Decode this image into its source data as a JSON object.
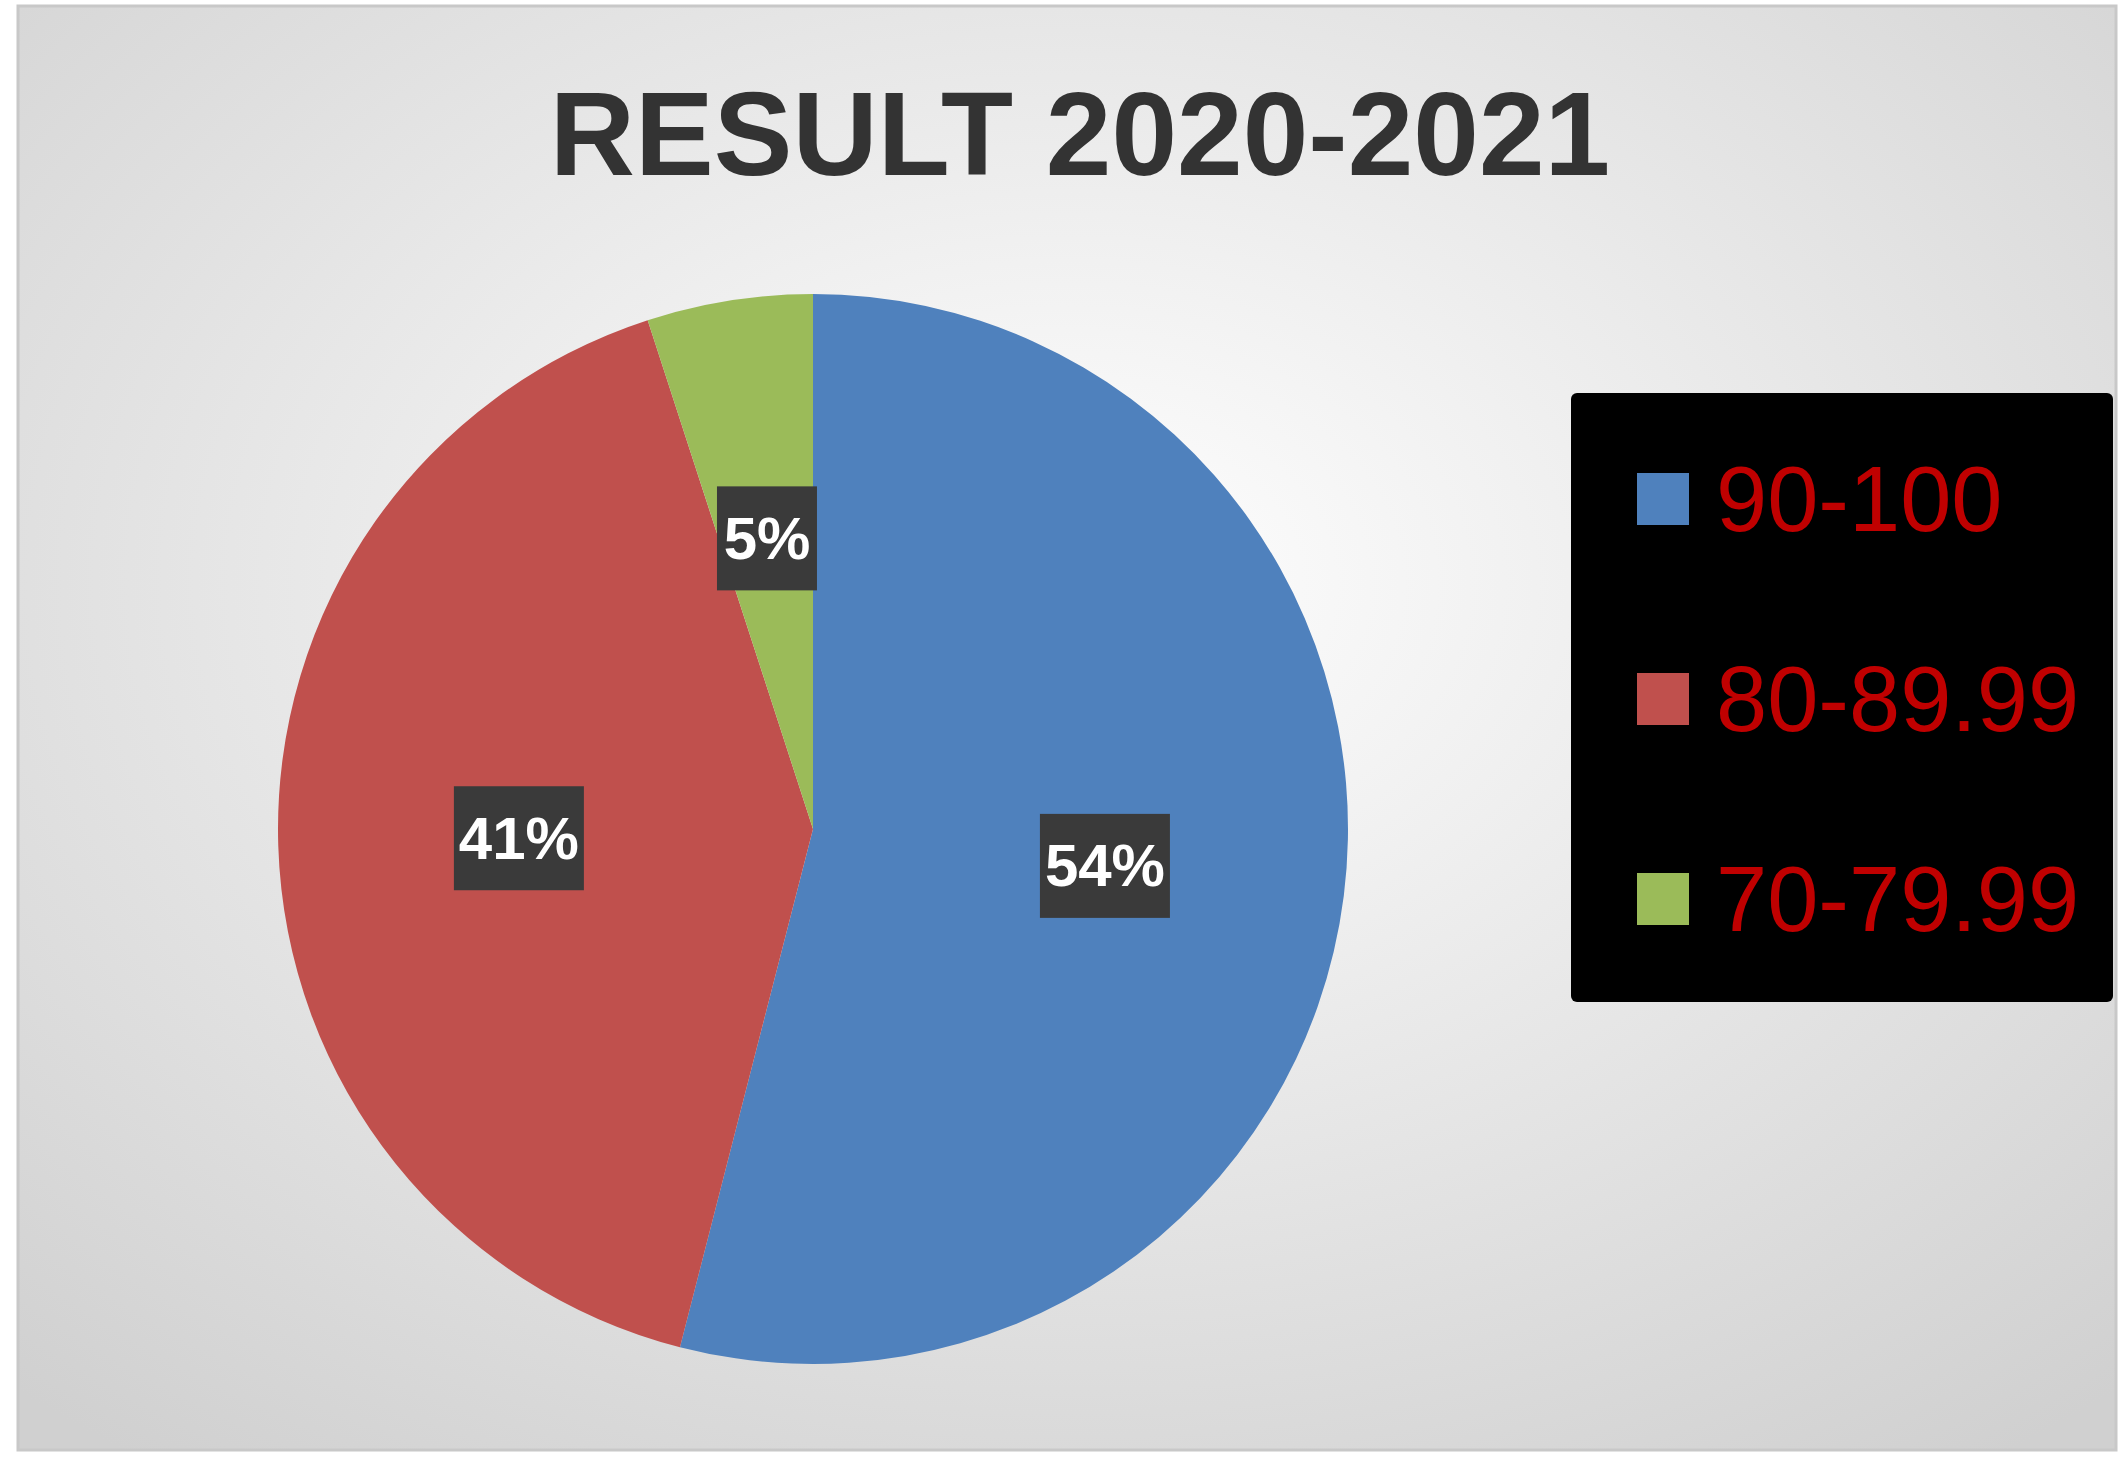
{
  "chart_data": {
    "type": "pie",
    "title": "RESULT 2020-2021",
    "categories": [
      "90-100",
      "80-89.99",
      "70-79.99"
    ],
    "values": [
      54,
      41,
      5
    ],
    "colors": [
      "#4f81bd",
      "#c0504d",
      "#9bbb59"
    ],
    "value_labels": [
      "54%",
      "41%",
      "5%"
    ],
    "legend": "right"
  }
}
